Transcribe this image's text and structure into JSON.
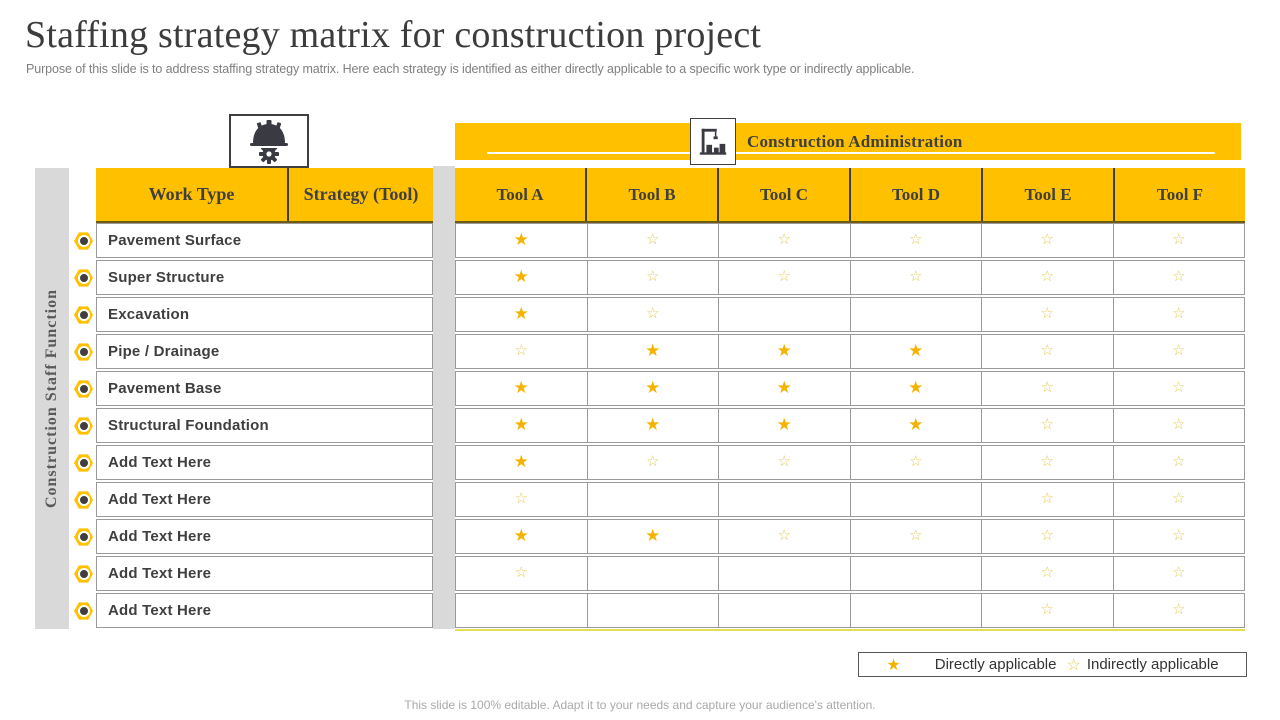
{
  "title": "Staffing strategy matrix for construction project",
  "subtitle": "Purpose of this slide is to address staffing strategy matrix. Here each strategy is identified as either directly applicable to a specific work type or indirectly applicable.",
  "footer_note": "This slide is 100% editable. Adapt it to your needs and capture your audience's attention.",
  "colors": {
    "accent_yellow": "#FFC000",
    "star_filled": "#F5B301",
    "star_outline": "#E2CC58",
    "sidebar_gray": "#D9D9D9",
    "dark_text": "#3F3F3F"
  },
  "icons": {
    "corner": "hard-hat-gear-icon",
    "band": "construction-crane-icon"
  },
  "band": {
    "label": "Construction Administration"
  },
  "axis": {
    "row_group_label": "Construction Staff Function",
    "work_type_header": "Work Type",
    "strategy_header": "Strategy (Tool)"
  },
  "tools": [
    "Tool A",
    "Tool B",
    "Tool C",
    "Tool D",
    "Tool E",
    "Tool F"
  ],
  "rows": [
    {
      "label": "Pavement Surface",
      "stars": [
        "filled",
        "outline",
        "outline",
        "outline",
        "outline",
        "outline"
      ]
    },
    {
      "label": "Super Structure",
      "stars": [
        "filled",
        "outline",
        "outline",
        "outline",
        "outline",
        "outline"
      ]
    },
    {
      "label": "Excavation",
      "stars": [
        "filled",
        "outline",
        "none",
        "none",
        "outline",
        "outline"
      ]
    },
    {
      "label": "Pipe / Drainage",
      "stars": [
        "outline",
        "filled",
        "filled",
        "filled",
        "outline",
        "outline"
      ]
    },
    {
      "label": "Pavement Base",
      "stars": [
        "filled",
        "filled",
        "filled",
        "filled",
        "outline",
        "outline"
      ]
    },
    {
      "label": "Structural Foundation",
      "stars": [
        "filled",
        "filled",
        "filled",
        "filled",
        "outline",
        "outline"
      ]
    },
    {
      "label": "Add Text Here",
      "stars": [
        "filled",
        "outline",
        "outline",
        "outline",
        "outline",
        "outline"
      ]
    },
    {
      "label": "Add Text Here",
      "stars": [
        "outline",
        "none",
        "none",
        "none",
        "outline",
        "outline"
      ]
    },
    {
      "label": "Add Text Here",
      "stars": [
        "filled",
        "filled",
        "outline",
        "outline",
        "outline",
        "outline"
      ]
    },
    {
      "label": "Add Text Here",
      "stars": [
        "outline",
        "none",
        "none",
        "none",
        "outline",
        "outline"
      ]
    },
    {
      "label": "Add Text Here",
      "stars": [
        "none",
        "none",
        "none",
        "none",
        "outline",
        "outline"
      ]
    }
  ],
  "legend": {
    "filled_symbol": "★",
    "filled_label": "Directly applicable",
    "outline_symbol": "☆",
    "outline_label": "Indirectly applicable"
  }
}
